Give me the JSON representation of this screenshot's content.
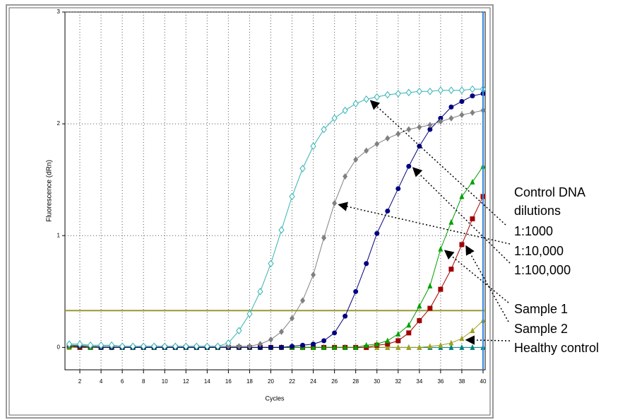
{
  "chart_data": {
    "type": "line",
    "x_label": "Cycles",
    "y_label": "Fluorescence (dRn)",
    "x": [
      1,
      2,
      3,
      4,
      5,
      6,
      7,
      8,
      9,
      10,
      11,
      12,
      13,
      14,
      15,
      16,
      17,
      18,
      19,
      20,
      21,
      22,
      23,
      24,
      25,
      26,
      27,
      28,
      29,
      30,
      31,
      32,
      33,
      34,
      35,
      36,
      37,
      38,
      39,
      40
    ],
    "xlim": [
      0.6,
      40.2
    ],
    "xticks": [
      2,
      4,
      6,
      8,
      10,
      12,
      14,
      16,
      18,
      20,
      22,
      24,
      26,
      28,
      30,
      32,
      34,
      36,
      38,
      40
    ],
    "ylim": [
      -0.2,
      3
    ],
    "yticks": [
      0,
      1,
      2,
      3
    ],
    "grid": true,
    "threshold": 0.33,
    "threshold_color": "#999933",
    "cursor": 40,
    "cursor_color": "#3388dd",
    "series": [
      {
        "color": "#33b3b3",
        "marker": "diamond-open",
        "values": [
          0.03,
          0.03,
          0.02,
          0.02,
          0.02,
          0.01,
          0.01,
          0.01,
          0.01,
          0.01,
          0.01,
          0.01,
          0.01,
          0.01,
          0.01,
          0.04,
          0.15,
          0.3,
          0.5,
          0.75,
          1.05,
          1.35,
          1.6,
          1.8,
          1.95,
          2.05,
          2.12,
          2.18,
          2.22,
          2.24,
          2.26,
          2.27,
          2.28,
          2.29,
          2.29,
          2.3,
          2.3,
          2.3,
          2.31,
          2.31
        ]
      },
      {
        "color": "#808080",
        "marker": "diamond",
        "values": [
          0.02,
          0.02,
          0.01,
          0.01,
          0.01,
          0.01,
          0.01,
          0.01,
          0.01,
          0.01,
          0.01,
          0.01,
          0.01,
          0.01,
          0.01,
          0.01,
          0.01,
          0.01,
          0.03,
          0.07,
          0.14,
          0.26,
          0.42,
          0.65,
          0.98,
          1.29,
          1.53,
          1.68,
          1.76,
          1.82,
          1.87,
          1.91,
          1.95,
          1.97,
          1.99,
          2.02,
          2.05,
          2.08,
          2.1,
          2.12
        ]
      },
      {
        "color": "#000080",
        "marker": "circle",
        "values": [
          0.02,
          0.01,
          0.01,
          0,
          0,
          0,
          0,
          0,
          0,
          0,
          0,
          0,
          0,
          0,
          0,
          0,
          0,
          0,
          0,
          0,
          0,
          0.01,
          0.02,
          0.03,
          0.06,
          0.13,
          0.28,
          0.5,
          0.75,
          1.02,
          1.22,
          1.42,
          1.62,
          1.8,
          1.95,
          2.05,
          2.15,
          2.2,
          2.25,
          2.27
        ]
      },
      {
        "color": "#00a000",
        "marker": "triangle",
        "values": [
          0.01,
          0.01,
          0,
          0,
          0,
          0,
          0,
          0,
          0,
          0,
          0,
          0,
          0,
          0,
          0,
          0,
          0,
          0,
          0,
          0,
          0,
          0,
          0,
          0,
          0,
          0,
          0,
          0,
          0.02,
          0.03,
          0.06,
          0.12,
          0.2,
          0.37,
          0.55,
          0.88,
          1.12,
          1.35,
          1.48,
          1.62
        ]
      },
      {
        "color": "#a00000",
        "marker": "square",
        "values": [
          0.01,
          0,
          0,
          0,
          0,
          0,
          0,
          0,
          0,
          0,
          0,
          0,
          0,
          0,
          0,
          0,
          0,
          0,
          0,
          0,
          0,
          0,
          0,
          0,
          0,
          0,
          0,
          0,
          0,
          0.02,
          0.03,
          0.06,
          0.13,
          0.24,
          0.35,
          0.52,
          0.7,
          0.92,
          1.15,
          1.35
        ]
      },
      {
        "color": "#a0a020",
        "marker": "triangle",
        "values": [
          0,
          0,
          0,
          0,
          0,
          0,
          0,
          0,
          0,
          0,
          0,
          0,
          0,
          0,
          0,
          0,
          0,
          0,
          0,
          0,
          0,
          0,
          0,
          0,
          0,
          0,
          0,
          0,
          0,
          0,
          0,
          0,
          0,
          0,
          0.01,
          0.02,
          0.04,
          0.08,
          0.15,
          0.24
        ]
      },
      {
        "color": "#008080",
        "marker": "triangle",
        "values": [
          0.02,
          0.01,
          0,
          0,
          0,
          0,
          0,
          0,
          0,
          0,
          0,
          0,
          0,
          0,
          0,
          0,
          0,
          0,
          0,
          0,
          0,
          0,
          0,
          0,
          0,
          0,
          0,
          0,
          0,
          0,
          0,
          0,
          0,
          0,
          0,
          0,
          0,
          0,
          0,
          0
        ]
      }
    ],
    "annotations": [
      "Control DNA dilutions",
      "1:1000",
      "1:10,000",
      "1:100,000",
      "Sample 1",
      "Sample 2",
      "Healthy control"
    ]
  }
}
